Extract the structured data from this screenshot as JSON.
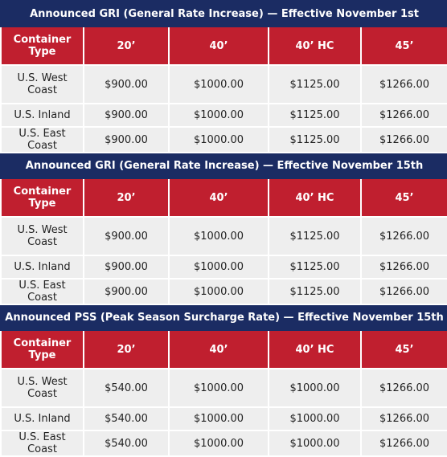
{
  "sections": [
    {
      "title": "Announced GRI  (General Rate Increase) — Effective November 1st",
      "header": [
        "Container Type",
        "20’",
        "40’",
        "40’ HC",
        "45’"
      ],
      "rows": [
        [
          "U.S. West Coast",
          "$900.00",
          "$1000.00",
          "$1125.00",
          "$1266.00"
        ],
        [
          "U.S. Inland",
          "$900.00",
          "$1000.00",
          "$1125.00",
          "$1266.00"
        ],
        [
          "U.S. East Coast",
          "$900.00",
          "$1000.00",
          "$1125.00",
          "$1266.00"
        ]
      ]
    },
    {
      "title": "Announced GRI  (General Rate Increase) — Effective November 15th",
      "header": [
        "Container Type",
        "20’",
        "40’",
        "40’ HC",
        "45’"
      ],
      "rows": [
        [
          "U.S. West Coast",
          "$900.00",
          "$1000.00",
          "$1125.00",
          "$1266.00"
        ],
        [
          "U.S. Inland",
          "$900.00",
          "$1000.00",
          "$1125.00",
          "$1266.00"
        ],
        [
          "U.S. East Coast",
          "$900.00",
          "$1000.00",
          "$1125.00",
          "$1266.00"
        ]
      ]
    },
    {
      "title": "Announced PSS  (Peak Season Surcharge Rate) — Effective November 15th",
      "header": [
        "Container Type",
        "20’",
        "40’",
        "40’ HC",
        "45’"
      ],
      "rows": [
        [
          "U.S. West Coast",
          "$540.00",
          "$1000.00",
          "$1000.00",
          "$1266.00"
        ],
        [
          "U.S. Inland",
          "$540.00",
          "$1000.00",
          "$1000.00",
          "$1266.00"
        ],
        [
          "U.S. East Coast",
          "$540.00",
          "$1000.00",
          "$1000.00",
          "$1266.00"
        ]
      ]
    }
  ]
}
